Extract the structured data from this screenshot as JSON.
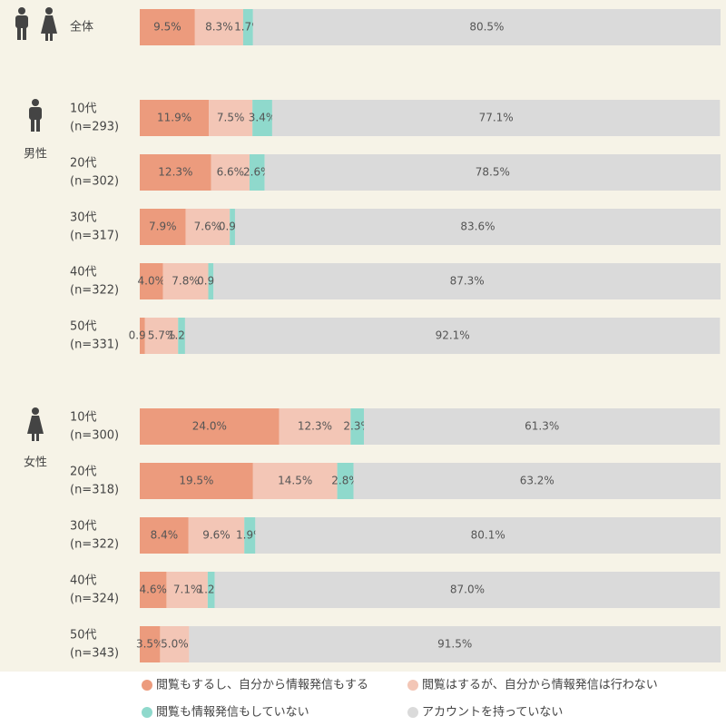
{
  "chart_data": {
    "type": "stacked-bar-horizontal",
    "categories": [
      "全体",
      "10代",
      "20代",
      "30代",
      "40代",
      "50代",
      "10代",
      "20代",
      "30代",
      "40代",
      "50代"
    ],
    "sample_labels": [
      null,
      "(n=293)",
      "(n=302)",
      "(n=317)",
      "(n=322)",
      "(n=331)",
      "(n=300)",
      "(n=318)",
      "(n=322)",
      "(n=324)",
      "(n=343)"
    ],
    "groups": [
      null,
      "男性",
      "男性",
      "男性",
      "男性",
      "男性",
      "女性",
      "女性",
      "女性",
      "女性",
      "女性"
    ],
    "xlim": [
      0,
      100
    ],
    "series": [
      {
        "name": "閲覧もするし、自分から情報発信もする",
        "color": "#ec9b7d",
        "values": [
          9.5,
          11.9,
          12.3,
          7.9,
          4.0,
          0.9,
          24.0,
          19.5,
          8.4,
          4.6,
          3.5
        ],
        "value_labels": [
          "9.5%",
          "11.9%",
          "12.3%",
          "7.9%",
          "4.0%",
          "0.9%",
          "24.0%",
          "19.5%",
          "8.4%",
          "4.6%",
          "3.5%"
        ]
      },
      {
        "name": "閲覧はするが、自分から情報発信は行わない",
        "color": "#f3c6b6",
        "values": [
          8.3,
          7.5,
          6.6,
          7.6,
          7.8,
          5.7,
          12.3,
          14.5,
          9.6,
          7.1,
          5.0
        ],
        "value_labels": [
          "8.3%",
          "7.5%",
          "6.6%",
          "7.6%",
          "7.8%",
          "5.7%",
          "12.3%",
          "14.5%",
          "9.6%",
          "7.1%",
          "5.0%"
        ]
      },
      {
        "name": "閲覧も情報発信もしていない",
        "color": "#8fd9cc",
        "values": [
          1.7,
          3.4,
          2.6,
          0.9,
          0.9,
          1.2,
          2.3,
          2.8,
          1.9,
          1.2,
          0
        ],
        "value_labels": [
          "1.7%",
          "3.4%",
          "2.6%",
          "0.9%",
          "0.9%",
          "1.2%",
          "2.3%",
          "2.8%",
          "1.9%",
          "1.2%",
          null
        ]
      },
      {
        "name": "アカウントを持っていない",
        "color": "#dadada",
        "values": [
          80.5,
          77.1,
          78.5,
          83.6,
          87.3,
          92.1,
          61.3,
          63.2,
          80.1,
          87.0,
          91.5
        ],
        "value_labels": [
          "80.5%",
          "77.1%",
          "78.5%",
          "83.6%",
          "87.3%",
          "92.1%",
          "61.3%",
          "63.2%",
          "80.1%",
          "87.0%",
          "91.5%"
        ]
      }
    ]
  }
}
